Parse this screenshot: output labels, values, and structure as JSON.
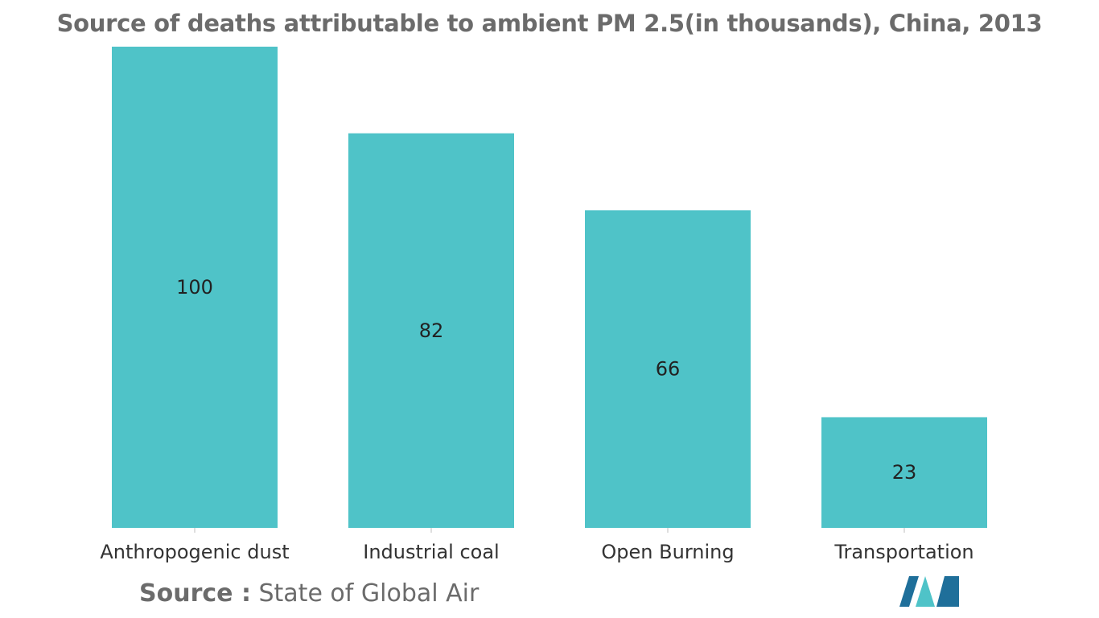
{
  "chart_data": {
    "type": "bar",
    "title": "Source of deaths attributable to ambient PM 2.5(in thousands), China, 2013",
    "categories": [
      "Anthropogenic dust",
      "Industrial coal",
      "Open Burning",
      "Transportation"
    ],
    "values": [
      100,
      82,
      66,
      23
    ],
    "data_labels": [
      "100",
      "82",
      "66",
      "23"
    ],
    "xlabel": "",
    "ylabel": "",
    "ylim": [
      0,
      100
    ],
    "grid": false,
    "legend": "none",
    "bar_color": "#4fc3c8"
  },
  "source": {
    "key": "Source :",
    "value": " State of Global Air"
  },
  "logo": {
    "icon": "mordor-intelligence-logo",
    "colors": [
      "#1f6f9a",
      "#4fc3c8"
    ]
  }
}
